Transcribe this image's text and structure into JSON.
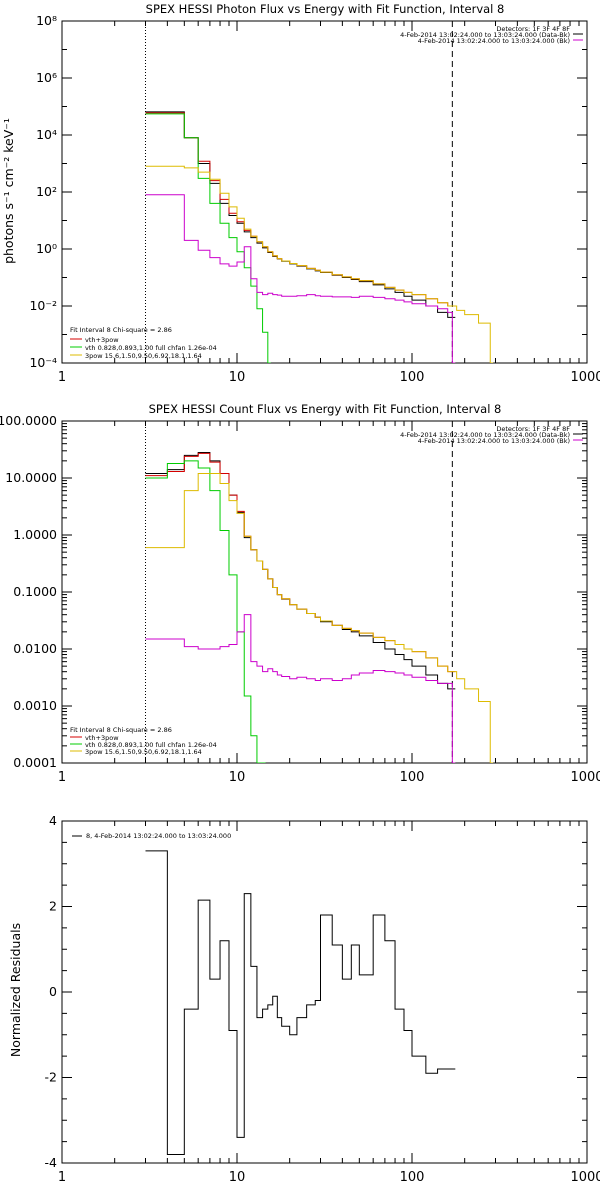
{
  "chart_data": [
    {
      "type": "line",
      "title": "SPEX HESSI Photon Flux vs Energy with Fit Function, Interval 8",
      "xlabel": "",
      "ylabel": "photons s⁻¹ cm⁻² keV⁻¹",
      "x_scale": "log",
      "y_scale": "log",
      "xlim": [
        1,
        1000
      ],
      "ylim": [
        0.0001,
        100000000
      ],
      "x_ticks": [
        1,
        10,
        100,
        1000
      ],
      "x_tick_labels": [
        "1",
        "10",
        "100",
        "1000"
      ],
      "y_ticks": [
        0.0001,
        0.01,
        1,
        100,
        10000,
        1000000,
        100000000
      ],
      "y_tick_labels": [
        "10⁻⁴",
        "10⁻²",
        "10⁰",
        "10²",
        "10⁴",
        "10⁶",
        "10⁸"
      ],
      "vlines": [
        {
          "x": 3.0,
          "style": "dotted"
        },
        {
          "x": 170,
          "style": "dashed"
        }
      ],
      "header": {
        "detectors": "Detectors: 1F 3F 4F 8F",
        "entries": [
          {
            "text": "4-Feb-2014 13:02:24.000 to 13:03:24.000 (Data-Bk)",
            "color": "#000000"
          },
          {
            "text": "4-Feb-2014 13:02:24.000 to 13:03:24.000 (Bk)",
            "color": "#cc00cc"
          }
        ]
      },
      "fit_title": "Fit Interval  8   Chi-square = 2.86",
      "fit_legend": [
        {
          "text": "vth+3pow",
          "color": "#d40000"
        },
        {
          "text": "vth 0.828,0.893,1.00  full chfan 1.26e-04",
          "color": "#00cc00"
        },
        {
          "text": "3pow 15.6,1.50,9.50,6.92,18.1,1.64",
          "color": "#ddbb00"
        }
      ],
      "series": [
        {
          "color": "#000000",
          "width": 1.0,
          "x": [
            3,
            4,
            5,
            6,
            7,
            8,
            9,
            10,
            11,
            12,
            13,
            14,
            15,
            16,
            17,
            18,
            20,
            22,
            25,
            28,
            30,
            35,
            40,
            45,
            50,
            60,
            70,
            80,
            90,
            100,
            120,
            140,
            160,
            170
          ],
          "values": [
            65000,
            65000,
            8000,
            1000,
            200,
            40,
            15,
            8,
            4,
            2.5,
            1.6,
            1.1,
            0.75,
            0.55,
            0.45,
            0.37,
            0.3,
            0.25,
            0.2,
            0.17,
            0.15,
            0.12,
            0.1,
            0.085,
            0.072,
            0.055,
            0.04,
            0.03,
            0.022,
            0.016,
            0.01,
            0.006,
            0.004,
            0.004
          ]
        },
        {
          "color": "#d40000",
          "width": 1.0,
          "x": [
            3,
            4,
            5,
            6,
            7,
            8,
            9,
            10,
            11,
            12,
            13,
            14,
            15,
            16,
            17,
            18,
            20,
            22,
            25,
            28,
            30,
            35,
            40,
            45,
            50,
            60,
            70,
            80,
            90,
            100,
            120,
            140,
            160,
            170
          ],
          "values": [
            60000,
            60000,
            8000,
            1200,
            250,
            55,
            18,
            9,
            4.5,
            2.8,
            1.8,
            1.2,
            0.8,
            0.58,
            0.46,
            0.38,
            0.31,
            0.26,
            0.21,
            0.18,
            0.155,
            0.125,
            0.105,
            0.09,
            0.078,
            0.06,
            0.045,
            0.036,
            0.03,
            0.025,
            0.018,
            0.013,
            0.01,
            0.01
          ]
        },
        {
          "color": "#00cc00",
          "width": 1.0,
          "x": [
            3,
            4,
            5,
            6,
            7,
            8,
            9,
            10,
            11,
            12,
            13,
            14,
            15
          ],
          "values": [
            55000,
            55000,
            8000,
            300,
            40,
            8,
            2.5,
            0.8,
            0.22,
            0.05,
            0.008,
            0.0012,
            0.0001
          ]
        },
        {
          "color": "#ddbb00",
          "width": 1.0,
          "x": [
            3,
            4,
            5,
            6,
            7,
            8,
            9,
            10,
            11,
            12,
            13,
            14,
            15,
            16,
            17,
            18,
            20,
            22,
            25,
            28,
            30,
            35,
            40,
            45,
            50,
            60,
            70,
            80,
            90,
            100,
            120,
            140,
            160,
            180,
            200,
            240,
            280
          ],
          "values": [
            800,
            800,
            700,
            500,
            280,
            90,
            30,
            12,
            5,
            2.8,
            1.8,
            1.2,
            0.8,
            0.58,
            0.46,
            0.38,
            0.31,
            0.26,
            0.21,
            0.18,
            0.155,
            0.125,
            0.105,
            0.09,
            0.078,
            0.06,
            0.045,
            0.036,
            0.03,
            0.025,
            0.018,
            0.013,
            0.01,
            0.007,
            0.005,
            0.0025,
            0.0001
          ]
        },
        {
          "color": "#cc00cc",
          "width": 1.0,
          "x": [
            3,
            4,
            5,
            6,
            7,
            8,
            9,
            10,
            11,
            12,
            13,
            14,
            15,
            16,
            17,
            18,
            20,
            22,
            25,
            28,
            30,
            35,
            40,
            45,
            50,
            60,
            70,
            80,
            90,
            100,
            120,
            140,
            160,
            170
          ],
          "values": [
            80,
            80,
            2,
            0.9,
            0.5,
            0.3,
            0.25,
            0.35,
            1.2,
            0.09,
            0.03,
            0.025,
            0.028,
            0.025,
            0.024,
            0.022,
            0.022,
            0.023,
            0.025,
            0.023,
            0.022,
            0.021,
            0.021,
            0.02,
            0.022,
            0.02,
            0.018,
            0.016,
            0.014,
            0.012,
            0.01,
            0.008,
            0.006,
            0.0001
          ]
        }
      ]
    },
    {
      "type": "line",
      "title": "SPEX HESSI Count Flux vs Energy with Fit Function, Interval 8",
      "xlabel": "",
      "ylabel": "",
      "x_scale": "log",
      "y_scale": "log",
      "xlim": [
        1,
        1000
      ],
      "ylim": [
        0.0001,
        100
      ],
      "x_ticks": [
        1,
        10,
        100,
        1000
      ],
      "x_tick_labels": [
        "1",
        "10",
        "100",
        "1000"
      ],
      "y_ticks": [
        0.0001,
        0.001,
        0.01,
        0.1,
        1,
        10,
        100
      ],
      "y_tick_labels": [
        "0.0001",
        "0.0010",
        "0.0100",
        "0.1000",
        "1.0000",
        "10.0000",
        "100.0000"
      ],
      "vlines": [
        {
          "x": 3.0,
          "style": "dotted"
        },
        {
          "x": 170,
          "style": "dashed"
        }
      ],
      "header": {
        "detectors": "Detectors: 1F 3F 4F 8F",
        "entries": [
          {
            "text": "4-Feb-2014 13:02:24.000 to 13:03:24.000 (Data-Bk)",
            "color": "#000000"
          },
          {
            "text": "4-Feb-2014 13:02:24.000 to 13:03:24.000 (Bk)",
            "color": "#cc00cc"
          }
        ]
      },
      "fit_title": "Fit Interval  8   Chi-square = 2.86",
      "fit_legend": [
        {
          "text": "vth+3pow",
          "color": "#d40000"
        },
        {
          "text": "vth 0.828,0.893,1.00  full chfan 1.26e-04",
          "color": "#00cc00"
        },
        {
          "text": "3pow 15.6,1.50,9.50,6.92,18.1,1.64",
          "color": "#ddbb00"
        }
      ],
      "series": [
        {
          "color": "#000000",
          "width": 1.0,
          "x": [
            3,
            4,
            5,
            6,
            7,
            8,
            9,
            10,
            11,
            12,
            13,
            14,
            15,
            16,
            17,
            18,
            20,
            22,
            25,
            28,
            30,
            35,
            40,
            45,
            50,
            60,
            70,
            80,
            90,
            100,
            120,
            140,
            160,
            170
          ],
          "values": [
            12,
            14,
            25,
            28,
            20,
            12,
            5,
            2.5,
            0.9,
            0.55,
            0.35,
            0.25,
            0.17,
            0.12,
            0.09,
            0.075,
            0.06,
            0.05,
            0.042,
            0.036,
            0.03,
            0.026,
            0.022,
            0.02,
            0.017,
            0.013,
            0.01,
            0.008,
            0.0065,
            0.005,
            0.0035,
            0.0025,
            0.002,
            0.002
          ]
        },
        {
          "color": "#d40000",
          "width": 1.0,
          "x": [
            3,
            4,
            5,
            6,
            7,
            8,
            9,
            10,
            11,
            12,
            13,
            14,
            15,
            16,
            17,
            18,
            20,
            22,
            25,
            28,
            30,
            35,
            40,
            45,
            50,
            60,
            70,
            80,
            90,
            100,
            120,
            140,
            160,
            170
          ],
          "values": [
            11,
            13,
            24,
            27,
            19,
            12,
            5,
            2.6,
            0.95,
            0.55,
            0.35,
            0.25,
            0.17,
            0.12,
            0.09,
            0.076,
            0.06,
            0.05,
            0.042,
            0.036,
            0.031,
            0.026,
            0.023,
            0.021,
            0.019,
            0.016,
            0.014,
            0.012,
            0.01,
            0.009,
            0.007,
            0.005,
            0.004,
            0.004
          ]
        },
        {
          "color": "#00cc00",
          "width": 1.0,
          "x": [
            3,
            4,
            5,
            6,
            7,
            8,
            9,
            10,
            11,
            12,
            13,
            14
          ],
          "values": [
            10,
            18,
            20,
            15,
            6,
            1.2,
            0.2,
            0.02,
            0.0015,
            0.0003,
            0.0001,
            0.0001
          ]
        },
        {
          "color": "#ddbb00",
          "width": 1.0,
          "x": [
            3,
            4,
            5,
            6,
            7,
            8,
            9,
            10,
            11,
            12,
            13,
            14,
            15,
            16,
            17,
            18,
            20,
            22,
            25,
            28,
            30,
            35,
            40,
            45,
            50,
            60,
            70,
            80,
            90,
            100,
            120,
            140,
            160,
            180,
            200,
            240,
            280
          ],
          "values": [
            0.6,
            0.6,
            6,
            12,
            12,
            8,
            4,
            2.4,
            0.95,
            0.55,
            0.35,
            0.25,
            0.17,
            0.12,
            0.09,
            0.076,
            0.06,
            0.05,
            0.042,
            0.036,
            0.031,
            0.026,
            0.023,
            0.021,
            0.019,
            0.016,
            0.014,
            0.012,
            0.01,
            0.009,
            0.007,
            0.005,
            0.004,
            0.003,
            0.002,
            0.0012,
            0.0001
          ]
        },
        {
          "color": "#cc00cc",
          "width": 1.0,
          "x": [
            3,
            4,
            5,
            6,
            7,
            8,
            9,
            10,
            11,
            12,
            13,
            14,
            15,
            16,
            17,
            18,
            20,
            22,
            25,
            28,
            30,
            35,
            40,
            45,
            50,
            60,
            70,
            80,
            90,
            100,
            120,
            140,
            160,
            170
          ],
          "values": [
            0.015,
            0.015,
            0.011,
            0.01,
            0.01,
            0.011,
            0.012,
            0.02,
            0.04,
            0.006,
            0.005,
            0.004,
            0.0045,
            0.004,
            0.0035,
            0.0033,
            0.003,
            0.0032,
            0.003,
            0.0028,
            0.003,
            0.0028,
            0.003,
            0.0035,
            0.0038,
            0.0042,
            0.004,
            0.0038,
            0.0035,
            0.0032,
            0.0028,
            0.0025,
            0.0025,
            0.0001
          ]
        }
      ]
    },
    {
      "type": "line",
      "title": "",
      "xlabel": "",
      "ylabel": "Normalized Residuals",
      "x_scale": "log",
      "y_scale": "linear",
      "xlim": [
        1,
        1000
      ],
      "ylim": [
        -4,
        4
      ],
      "x_ticks": [
        1,
        10,
        100,
        1000
      ],
      "x_tick_labels": [
        "1",
        "10",
        "100",
        "1000"
      ],
      "y_ticks": [
        -4,
        -2,
        0,
        2,
        4
      ],
      "y_tick_labels": [
        "-4",
        "-2",
        "0",
        "2",
        "4"
      ],
      "legend": {
        "text": "8,  4-Feb-2014 13:02:24.000 to 13:03:24.000",
        "color": "#000000"
      },
      "series": [
        {
          "color": "#000000",
          "width": 1.0,
          "x": [
            3,
            4,
            5,
            6,
            7,
            8,
            9,
            10,
            11,
            12,
            13,
            14,
            15,
            16,
            17,
            18,
            20,
            22,
            25,
            28,
            30,
            35,
            40,
            45,
            50,
            60,
            70,
            80,
            90,
            100,
            120,
            140,
            160,
            170
          ],
          "values": [
            3.3,
            -3.8,
            -0.4,
            2.15,
            0.3,
            1.2,
            -0.9,
            -3.4,
            2.3,
            0.6,
            -0.6,
            -0.4,
            -0.3,
            -0.1,
            -0.6,
            -0.8,
            -1.0,
            -0.6,
            -0.3,
            -0.2,
            1.8,
            1.1,
            0.3,
            1.1,
            0.4,
            1.8,
            1.2,
            -0.4,
            -0.9,
            -1.5,
            -1.9,
            -1.8,
            -1.8,
            -1.8
          ]
        }
      ]
    }
  ]
}
